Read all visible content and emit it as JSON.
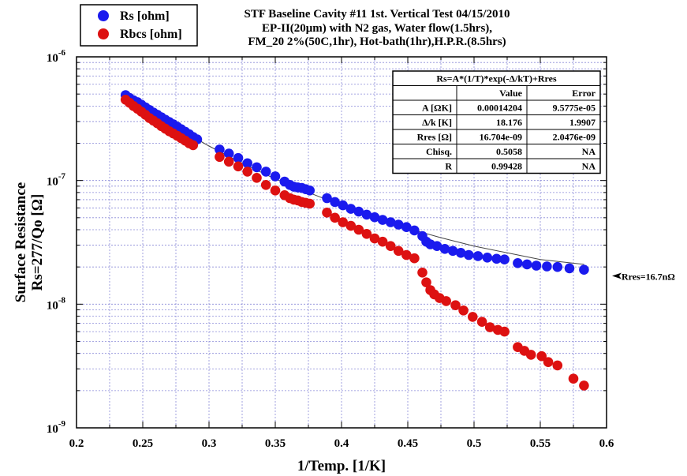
{
  "chart_data": {
    "type": "scatter",
    "title_lines": [
      "STF Baseline Cavity #11 1st. Vertical Test 04/15/2010",
      "EP-II(20μm) with N2 gas, Water flow(1.5hrs),",
      "FM_20 2%(50C,1hr), Hot-bath(1hr),H.P.R.(8.5hrs)"
    ],
    "xlabel": "1/Temp. [1/K]",
    "ylabel_lines": [
      "Surface Resistance",
      "Rs=277/Qo [Ω]"
    ],
    "xlim": [
      0.2,
      0.6
    ],
    "ylim": [
      1e-09,
      1e-06
    ],
    "y_scale": "log",
    "grid": true,
    "x_ticks": [
      "0.2",
      "0.25",
      "0.3",
      "0.35",
      "0.4",
      "0.45",
      "0.5",
      "0.55",
      "0.6"
    ],
    "y_ticks": [
      {
        "base": "10",
        "exp": "-9"
      },
      {
        "base": "10",
        "exp": "-8"
      },
      {
        "base": "10",
        "exp": "-7"
      },
      {
        "base": "10",
        "exp": "-6"
      }
    ],
    "legend_placement": "top-left",
    "series": [
      {
        "name": "Rs [ohm]",
        "color": "#1a1aee",
        "points": [
          [
            0.237,
            4.9e-07
          ],
          [
            0.24,
            4.65e-07
          ],
          [
            0.243,
            4.45e-07
          ],
          [
            0.246,
            4.3e-07
          ],
          [
            0.249,
            4.1e-07
          ],
          [
            0.252,
            3.9e-07
          ],
          [
            0.255,
            3.72e-07
          ],
          [
            0.258,
            3.55e-07
          ],
          [
            0.261,
            3.4e-07
          ],
          [
            0.264,
            3.25e-07
          ],
          [
            0.267,
            3.1e-07
          ],
          [
            0.27,
            2.97e-07
          ],
          [
            0.273,
            2.85e-07
          ],
          [
            0.276,
            2.72e-07
          ],
          [
            0.279,
            2.6e-07
          ],
          [
            0.282,
            2.48e-07
          ],
          [
            0.285,
            2.37e-07
          ],
          [
            0.288,
            2.25e-07
          ],
          [
            0.291,
            2.15e-07
          ],
          [
            0.308,
            1.78e-07
          ],
          [
            0.315,
            1.65e-07
          ],
          [
            0.322,
            1.52e-07
          ],
          [
            0.329,
            1.38e-07
          ],
          [
            0.336,
            1.28e-07
          ],
          [
            0.343,
            1.18e-07
          ],
          [
            0.35,
            1.08e-07
          ],
          [
            0.357,
            9.8e-08
          ],
          [
            0.361,
            9.2e-08
          ],
          [
            0.364,
            8.9e-08
          ],
          [
            0.367,
            8.8e-08
          ],
          [
            0.37,
            8.7e-08
          ],
          [
            0.373,
            8.5e-08
          ],
          [
            0.376,
            8.3e-08
          ],
          [
            0.389,
            7.2e-08
          ],
          [
            0.395,
            6.7e-08
          ],
          [
            0.401,
            6.3e-08
          ],
          [
            0.407,
            5.9e-08
          ],
          [
            0.413,
            5.6e-08
          ],
          [
            0.419,
            5.3e-08
          ],
          [
            0.425,
            5.05e-08
          ],
          [
            0.431,
            4.8e-08
          ],
          [
            0.437,
            4.6e-08
          ],
          [
            0.443,
            4.4e-08
          ],
          [
            0.449,
            4.2e-08
          ],
          [
            0.455,
            3.95e-08
          ],
          [
            0.461,
            3.55e-08
          ],
          [
            0.464,
            3.2e-08
          ],
          [
            0.467,
            3.05e-08
          ],
          [
            0.472,
            2.95e-08
          ],
          [
            0.478,
            2.8e-08
          ],
          [
            0.484,
            2.7e-08
          ],
          [
            0.49,
            2.6e-08
          ],
          [
            0.496,
            2.5e-08
          ],
          [
            0.503,
            2.45e-08
          ],
          [
            0.51,
            2.38e-08
          ],
          [
            0.517,
            2.33e-08
          ],
          [
            0.523,
            2.3e-08
          ],
          [
            0.533,
            2.15e-08
          ],
          [
            0.54,
            2.1e-08
          ],
          [
            0.547,
            2.05e-08
          ],
          [
            0.555,
            2.02e-08
          ],
          [
            0.563,
            2e-08
          ],
          [
            0.572,
            1.95e-08
          ],
          [
            0.583,
            1.9e-08
          ]
        ]
      },
      {
        "name": "Rbcs [ohm]",
        "color": "#dd1111",
        "points": [
          [
            0.237,
            4.5e-07
          ],
          [
            0.24,
            4.25e-07
          ],
          [
            0.243,
            4e-07
          ],
          [
            0.246,
            3.8e-07
          ],
          [
            0.249,
            3.6e-07
          ],
          [
            0.252,
            3.4e-07
          ],
          [
            0.255,
            3.2e-07
          ],
          [
            0.258,
            3.05e-07
          ],
          [
            0.261,
            2.9e-07
          ],
          [
            0.264,
            2.75e-07
          ],
          [
            0.267,
            2.62e-07
          ],
          [
            0.27,
            2.5e-07
          ],
          [
            0.273,
            2.4e-07
          ],
          [
            0.276,
            2.3e-07
          ],
          [
            0.279,
            2.2e-07
          ],
          [
            0.282,
            2.1e-07
          ],
          [
            0.285,
            2e-07
          ],
          [
            0.288,
            1.93e-07
          ],
          [
            0.308,
            1.55e-07
          ],
          [
            0.315,
            1.42e-07
          ],
          [
            0.322,
            1.3e-07
          ],
          [
            0.329,
            1.18e-07
          ],
          [
            0.336,
            1.05e-07
          ],
          [
            0.343,
            9.2e-08
          ],
          [
            0.35,
            8.3e-08
          ],
          [
            0.357,
            7.6e-08
          ],
          [
            0.361,
            7.2e-08
          ],
          [
            0.364,
            7e-08
          ],
          [
            0.367,
            6.9e-08
          ],
          [
            0.37,
            6.7e-08
          ],
          [
            0.373,
            6.6e-08
          ],
          [
            0.376,
            6.5e-08
          ],
          [
            0.389,
            5.5e-08
          ],
          [
            0.395,
            5e-08
          ],
          [
            0.401,
            4.6e-08
          ],
          [
            0.407,
            4.3e-08
          ],
          [
            0.413,
            4e-08
          ],
          [
            0.419,
            3.7e-08
          ],
          [
            0.425,
            3.4e-08
          ],
          [
            0.431,
            3.2e-08
          ],
          [
            0.437,
            2.95e-08
          ],
          [
            0.443,
            2.7e-08
          ],
          [
            0.449,
            2.5e-08
          ],
          [
            0.455,
            2.35e-08
          ],
          [
            0.461,
            1.8e-08
          ],
          [
            0.464,
            1.5e-08
          ],
          [
            0.467,
            1.3e-08
          ],
          [
            0.47,
            1.2e-08
          ],
          [
            0.474,
            1.12e-08
          ],
          [
            0.479,
            1.06e-08
          ],
          [
            0.486,
            9.8e-09
          ],
          [
            0.492,
            8.9e-09
          ],
          [
            0.499,
            7.9e-09
          ],
          [
            0.506,
            7.2e-09
          ],
          [
            0.512,
            6.5e-09
          ],
          [
            0.518,
            6.2e-09
          ],
          [
            0.523,
            6e-09
          ],
          [
            0.533,
            4.5e-09
          ],
          [
            0.538,
            4.2e-09
          ],
          [
            0.543,
            3.9e-09
          ],
          [
            0.551,
            3.8e-09
          ],
          [
            0.556,
            3.4e-09
          ],
          [
            0.563,
            3.2e-09
          ],
          [
            0.575,
            2.5e-09
          ],
          [
            0.583,
            2.2e-09
          ]
        ]
      }
    ],
    "fit_line": {
      "color": "#444444",
      "points": [
        [
          0.237,
          5e-07
        ],
        [
          0.25,
          4e-07
        ],
        [
          0.275,
          2.7e-07
        ],
        [
          0.3,
          1.9e-07
        ],
        [
          0.325,
          1.38e-07
        ],
        [
          0.35,
          1.03e-07
        ],
        [
          0.375,
          8e-08
        ],
        [
          0.4,
          6.3e-08
        ],
        [
          0.425,
          5.05e-08
        ],
        [
          0.45,
          4.1e-08
        ],
        [
          0.475,
          3.45e-08
        ],
        [
          0.5,
          2.95e-08
        ],
        [
          0.525,
          2.6e-08
        ],
        [
          0.55,
          2.3e-08
        ],
        [
          0.583,
          2.1e-08
        ]
      ]
    },
    "fit_table": {
      "title": "Rs=A*(1/T)*exp(-Δ/kT)+Rres",
      "headers": [
        "",
        "Value",
        "Error"
      ],
      "rows": [
        [
          "A [ΩK]",
          "0.00014204",
          "9.5775e-05"
        ],
        [
          "Δ/k [K]",
          "18.176",
          "1.9907"
        ],
        [
          "Rres [Ω]",
          "16.704e-09",
          "2.0476e-09"
        ],
        [
          "Chisq.",
          "0.5058",
          "NA"
        ],
        [
          "R",
          "0.99428",
          "NA"
        ]
      ]
    },
    "annotations": [
      {
        "text": "Rres=16.7nΩ",
        "y": 1.67e-08
      }
    ]
  }
}
